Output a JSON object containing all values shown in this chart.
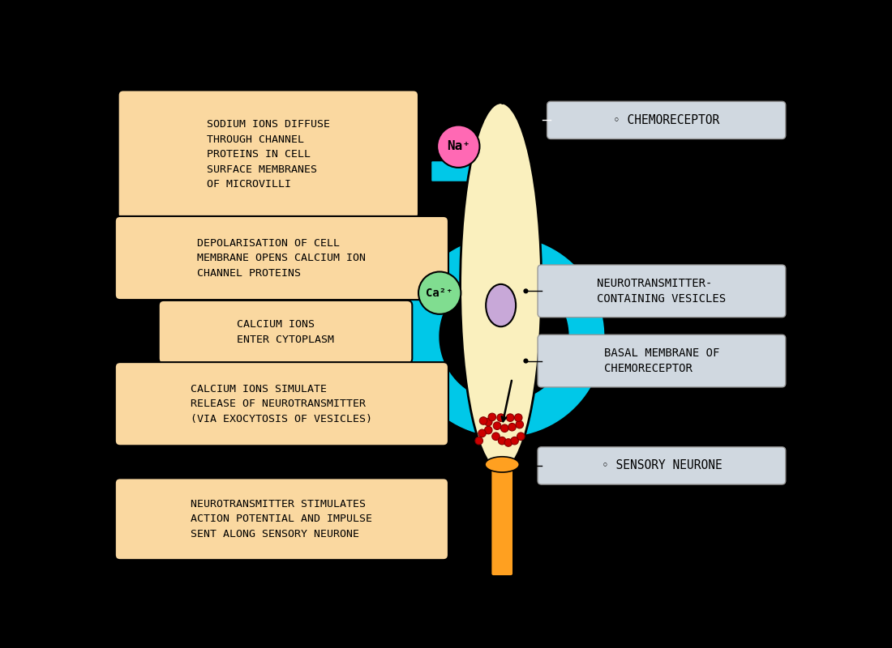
{
  "bg_color": "#000000",
  "cell_color": "#FAF0BE",
  "nucleus_color": "#C8A8D8",
  "cyan_color": "#00C8E8",
  "box_color": "#FAD8A0",
  "label_box_color": "#D0D8E0",
  "na_color": "#FF69B4",
  "ca_color": "#80DD90",
  "red_dot_color": "#CC0000",
  "orange_neuron_color": "#FFA020",
  "box1_text": "SODIUM IONS DIFFUSE\nTHROUGH CHANNEL\nPROTEINS IN CELL\nSURFACE MEMBRANES\nOF MICROVILLI",
  "box2_text": "DEPOLARISATION OF CELL\nMEMBRANE OPENS CALCIUM ION\nCHANNEL PROTEINS",
  "box3_text": "CALCIUM IONS\nENTER CYTOPLASM",
  "box4_text": "CALCIUM IONS SIMULATE\nRELEASE OF NEUROTRANSMITTER\n(VIA EXOCYTOSIS OF VESICLES)",
  "box5_text": "NEUROTRANSMITTER STIMULATES\nACTION POTENTIAL AND IMPULSE\nSENT ALONG SENSORY NEURONE",
  "label_chemoreceptor": "◦ CHEMORECEPTOR",
  "label_vesicles": "NEUROTRANSMITTER-\nCONTAINING VESICLES",
  "label_basal": "BASAL MEMBRANE OF\nCHEMORECEPTOR",
  "label_sensory": "◦ SENSORY NEURONE",
  "na_label": "Na⁺",
  "ca_label": "Ca²⁺"
}
